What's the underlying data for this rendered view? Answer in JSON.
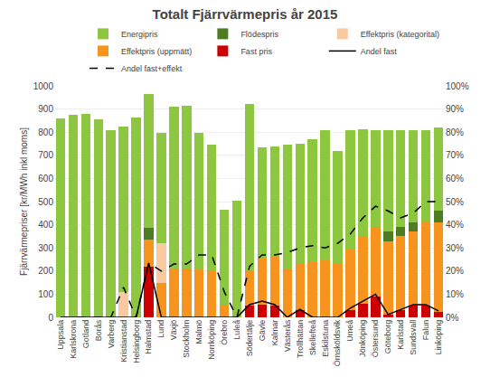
{
  "chart_data": {
    "type": "bar",
    "title": "Totalt Fjärrvärmepris år 2015",
    "ylabel": "Fjärrvärmepriser [kr/MWh inkl moms]",
    "categories": [
      "Uppsala",
      "Karlskrona",
      "Gotland",
      "Borås",
      "Varberg",
      "Kristianstad",
      "Helsingborg",
      "Halmstad",
      "Lund",
      "Växjö",
      "Stockholm",
      "Malmö",
      "Norrköping",
      "Örebro",
      "Luleå",
      "Södertälje",
      "Gävle",
      "Kalmar",
      "Västerås",
      "Trollhättan",
      "Skellefteå",
      "Eskilstuna",
      "Örnsköldsvik",
      "Umeå",
      "Jönköping",
      "Östersund",
      "Göteborg",
      "Karlstad",
      "Sundsvall",
      "Falun",
      "Linköping"
    ],
    "stacked": true,
    "series": [
      {
        "name": "Fast pris",
        "type": "bar",
        "color": "#CC0000",
        "values": [
          0,
          0,
          0,
          0,
          0,
          0,
          0,
          220,
          0,
          0,
          0,
          0,
          0,
          0,
          0,
          50,
          55,
          50,
          0,
          30,
          0,
          0,
          0,
          30,
          60,
          90,
          10,
          30,
          50,
          50,
          25
        ]
      },
      {
        "name": "Effektpris (uppmätt)",
        "type": "bar",
        "color": "#F7941D",
        "values": [
          0,
          0,
          0,
          0,
          0,
          0,
          0,
          115,
          150,
          210,
          210,
          210,
          200,
          50,
          0,
          150,
          200,
          210,
          210,
          200,
          240,
          245,
          235,
          265,
          290,
          300,
          320,
          320,
          320,
          360,
          385
        ]
      },
      {
        "name": "Effektpris (kategorital)",
        "type": "bar",
        "color": "#F9C9A0",
        "values": [
          0,
          0,
          0,
          0,
          0,
          110,
          0,
          0,
          170,
          0,
          0,
          0,
          0,
          0,
          0,
          0,
          0,
          0,
          0,
          0,
          0,
          0,
          0,
          0,
          0,
          0,
          0,
          0,
          0,
          0,
          0
        ]
      },
      {
        "name": "Flödespris",
        "type": "bar",
        "color": "#4D7C23",
        "values": [
          0,
          0,
          0,
          0,
          0,
          0,
          0,
          50,
          0,
          0,
          0,
          0,
          0,
          0,
          0,
          0,
          0,
          0,
          0,
          0,
          0,
          0,
          0,
          0,
          0,
          0,
          40,
          40,
          40,
          0,
          50
        ]
      },
      {
        "name": "Energipris",
        "type": "bar",
        "color": "#8DC63F",
        "values": [
          860,
          875,
          880,
          857,
          810,
          716,
          864,
          580,
          475,
          702,
          703,
          585,
          545,
          415,
          505,
          720,
          480,
          480,
          535,
          520,
          530,
          565,
          485,
          515,
          463,
          420,
          437,
          420,
          398,
          400,
          362
        ]
      },
      {
        "name": "Andel fast",
        "type": "line",
        "axis": "y2",
        "color": "#000000",
        "line_style": "solid",
        "values": [
          0.0,
          0.0,
          0.0,
          0.0,
          0.0,
          0.0,
          0.0,
          0.235,
          0.0,
          0.0,
          0.0,
          0.0,
          0.0,
          0.0,
          0.0,
          0.055,
          0.07,
          0.055,
          0.0,
          0.035,
          0.0,
          0.0,
          0.0,
          0.04,
          0.07,
          0.1,
          0.012,
          0.035,
          0.055,
          0.055,
          0.028
        ]
      },
      {
        "name": "Andel fast+effekt",
        "type": "line",
        "axis": "y2",
        "color": "#000000",
        "line_style": "dash",
        "values": [
          0.0,
          0.0,
          0.0,
          0.0,
          0.0,
          0.13,
          0.0,
          0.235,
          0.2,
          0.23,
          0.23,
          0.27,
          0.27,
          0.11,
          0.0,
          0.22,
          0.27,
          0.27,
          0.28,
          0.3,
          0.31,
          0.3,
          0.32,
          0.36,
          0.43,
          0.48,
          0.46,
          0.43,
          0.45,
          0.5,
          0.5
        ]
      }
    ],
    "ylim": [
      0,
      1000
    ],
    "yticks": [
      0,
      100,
      200,
      300,
      400,
      500,
      600,
      700,
      800,
      900,
      1000
    ],
    "y2lim": [
      0,
      1.0
    ],
    "y2ticks": [
      {
        "value": 0.0,
        "label": "0%"
      },
      {
        "value": 0.1,
        "label": "10%"
      },
      {
        "value": 0.2,
        "label": "20%"
      },
      {
        "value": 0.3,
        "label": "30%"
      },
      {
        "value": 0.4,
        "label": "40%"
      },
      {
        "value": 0.5,
        "label": "50%"
      },
      {
        "value": 0.6,
        "label": "60%"
      },
      {
        "value": 0.7,
        "label": "70%"
      },
      {
        "value": 0.8,
        "label": "80%"
      },
      {
        "value": 0.9,
        "label": "90%"
      },
      {
        "value": 1.0,
        "label": "100%"
      }
    ],
    "grid": true,
    "legend": "upper right"
  }
}
